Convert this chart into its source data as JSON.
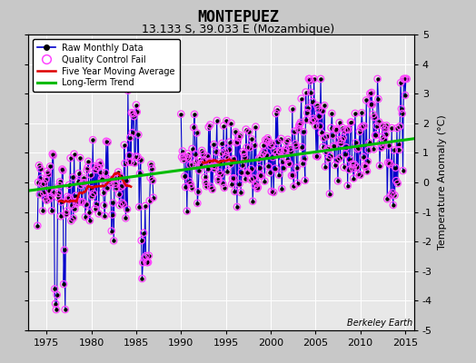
{
  "title": "MONTEPUEZ",
  "subtitle": "13.133 S, 39.033 E (Mozambique)",
  "ylabel": "Temperature Anomaly (°C)",
  "watermark": "Berkeley Earth",
  "ylim": [
    -5,
    5
  ],
  "xlim": [
    1973.0,
    2016.0
  ],
  "xticks": [
    1975,
    1980,
    1985,
    1990,
    1995,
    2000,
    2005,
    2010,
    2015
  ],
  "yticks": [
    -5,
    -4,
    -3,
    -2,
    -1,
    0,
    1,
    2,
    3,
    4,
    5
  ],
  "plot_bg_color": "#e8e8e8",
  "fig_bg_color": "#c8c8c8",
  "grid_color": "#ffffff",
  "raw_color": "#0000cc",
  "qc_color": "#ff44ff",
  "moving_avg_color": "#dd0000",
  "trend_color": "#00bb00",
  "trend_x": [
    1973.0,
    2016.0
  ],
  "trend_y": [
    -0.28,
    1.48
  ],
  "title_fontsize": 12,
  "subtitle_fontsize": 9,
  "tick_fontsize": 8,
  "ylabel_fontsize": 8
}
